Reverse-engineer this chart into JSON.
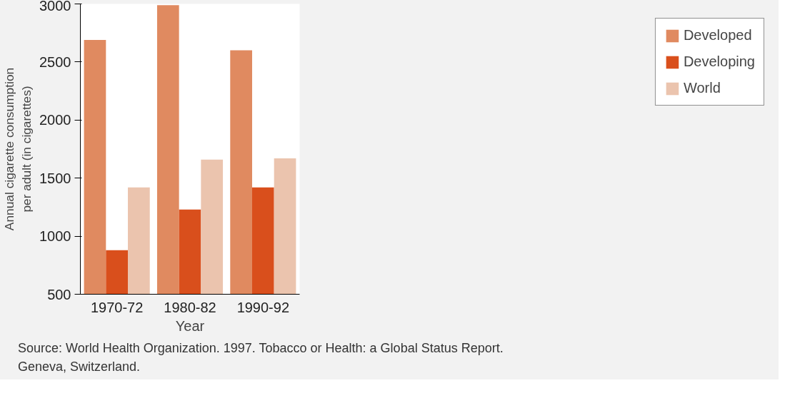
{
  "chart_data": {
    "type": "bar",
    "xlabel": "Year",
    "ylabel": "Annual cigarette consumption\nper adult (in cigarettes)",
    "categories": [
      "1970-72",
      "1980-82",
      "1990-92"
    ],
    "series": [
      {
        "name": "Developed",
        "color": "#e08a60",
        "values": [
          2690,
          2990,
          2600
        ]
      },
      {
        "name": "Developing",
        "color": "#d94f1c",
        "values": [
          880,
          1230,
          1420
        ]
      },
      {
        "name": "World",
        "color": "#ebc4ae",
        "values": [
          1420,
          1660,
          1670
        ]
      }
    ],
    "ylim": [
      500,
      3000
    ],
    "yticks": [
      500,
      1000,
      1500,
      2000,
      2500,
      3000
    ],
    "grid": false,
    "legend": "right",
    "annotations": [
      "Source: World Health Organization. 1997. Tobacco or Health: a Global Status Report.",
      "Geneva, Switzerland."
    ]
  }
}
